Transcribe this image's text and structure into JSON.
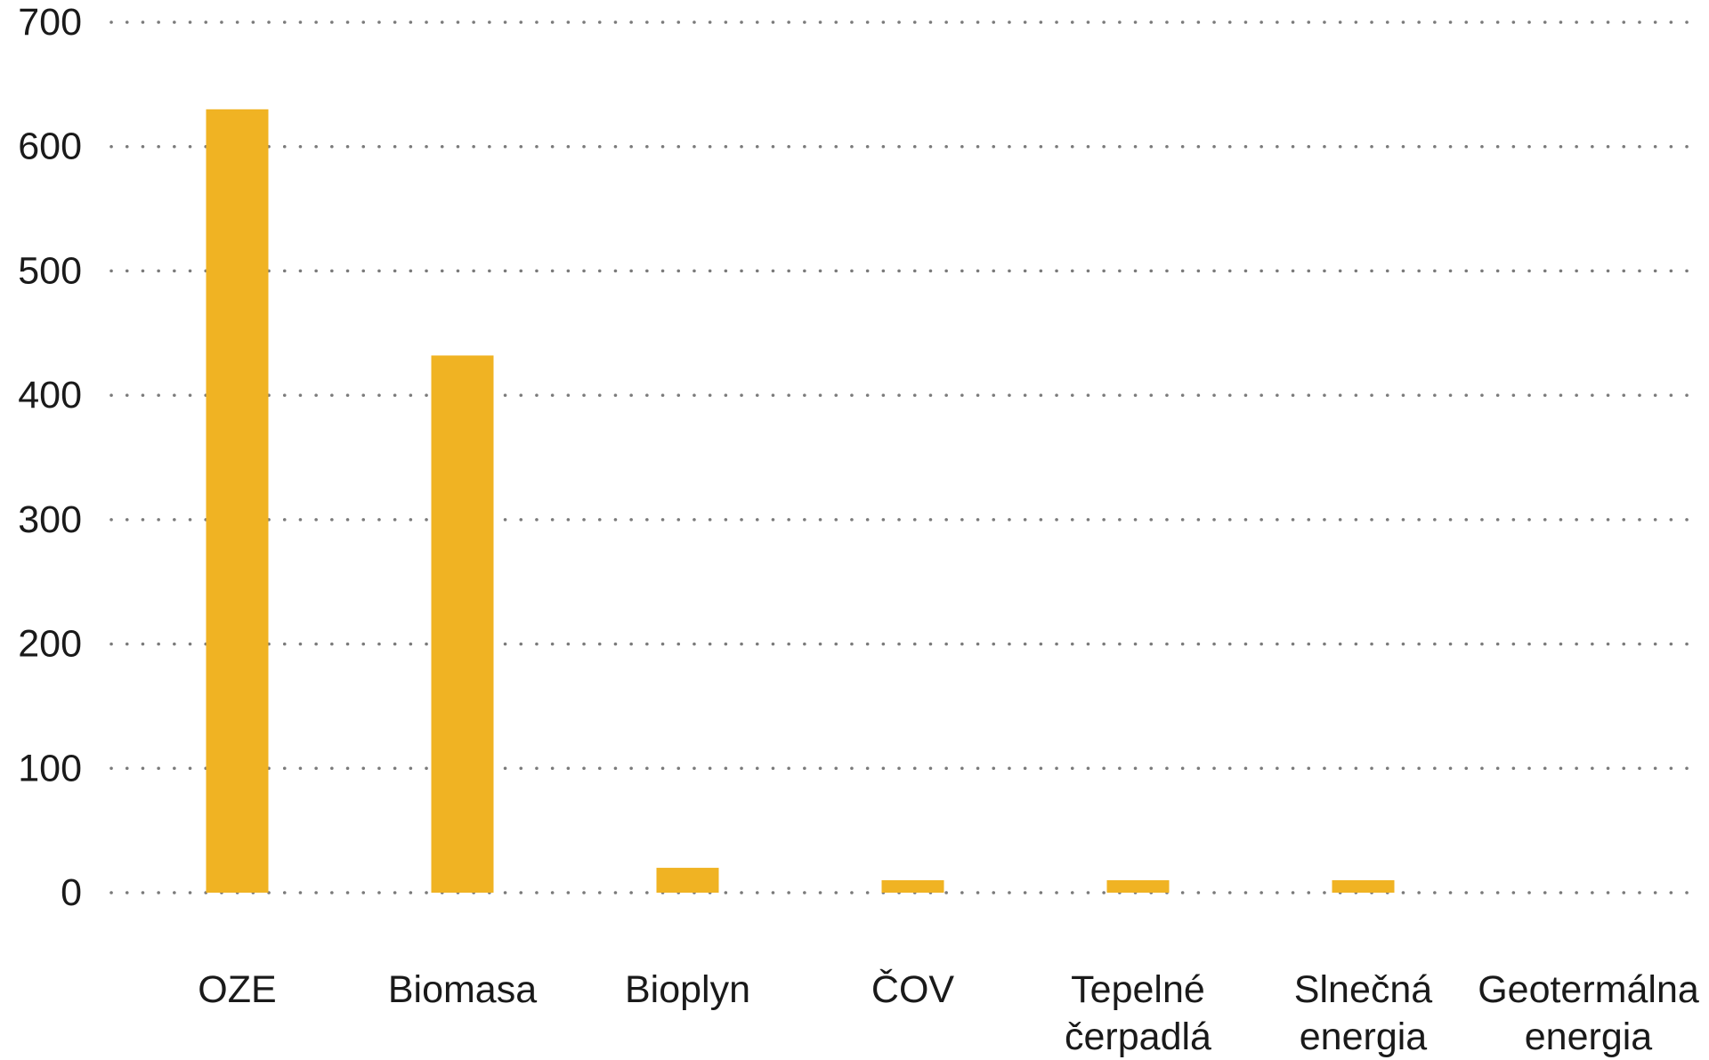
{
  "chart_data": {
    "type": "bar",
    "title": "",
    "xlabel": "",
    "ylabel": "",
    "ylim": [
      0,
      700
    ],
    "yticks": [
      0,
      100,
      200,
      300,
      400,
      500,
      600,
      700
    ],
    "grid": true,
    "categories": [
      [
        "OZE"
      ],
      [
        "Biomasa"
      ],
      [
        "Bioplyn"
      ],
      [
        "ČOV"
      ],
      [
        "Tepelné",
        "čerpadlá"
      ],
      [
        "Slnečná",
        "energia"
      ],
      [
        "Geotermálna",
        "energia"
      ]
    ],
    "values": [
      630,
      432,
      20,
      10,
      10,
      10,
      0
    ],
    "colors": {
      "bar": "#F0B323",
      "grid": "#7a7a7a",
      "text": "#1a1a1a"
    }
  }
}
